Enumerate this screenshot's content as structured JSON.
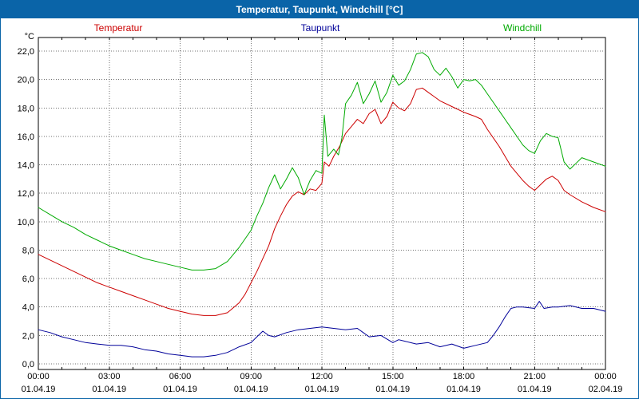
{
  "window": {
    "title": "Temperatur, Taupunkt, Windchill [°C]"
  },
  "colors": {
    "titlebar": "#0a64a8",
    "frame": "#000000",
    "grid": "#707070",
    "background": "#ffffff",
    "temperatur": "#cc0000",
    "taupunkt": "#000099",
    "windchill": "#00aa00"
  },
  "chart_data": {
    "type": "line",
    "title": "Temperatur, Taupunkt, Windchill [°C]",
    "ylabel": "°C",
    "xlabel": "",
    "grid": "dotted",
    "ylim": [
      0,
      22
    ],
    "ytick_step": 2,
    "ytick_labels": [
      "0,0",
      "2,0",
      "4,0",
      "6,0",
      "8,0",
      "10,0",
      "12,0",
      "14,0",
      "16,0",
      "18,0",
      "20,0",
      "22,0"
    ],
    "xlim": [
      0,
      24
    ],
    "x_unit": "hours",
    "xticks": {
      "hours": [
        0,
        3,
        6,
        9,
        12,
        15,
        18,
        21,
        24
      ],
      "times": [
        "00:00",
        "03:00",
        "06:00",
        "09:00",
        "12:00",
        "15:00",
        "18:00",
        "21:00",
        "00:00"
      ],
      "dates": [
        "01.04.19",
        "01.04.19",
        "01.04.19",
        "01.04.19",
        "01.04.19",
        "01.04.19",
        "01.04.19",
        "01.04.19",
        "02.04.19"
      ]
    },
    "series": [
      {
        "name": "Temperatur",
        "color": "#cc0000",
        "points": [
          [
            0,
            7.7
          ],
          [
            0.5,
            7.3
          ],
          [
            1,
            6.9
          ],
          [
            1.5,
            6.5
          ],
          [
            2,
            6.1
          ],
          [
            2.5,
            5.7
          ],
          [
            3,
            5.4
          ],
          [
            3.5,
            5.1
          ],
          [
            4,
            4.8
          ],
          [
            4.5,
            4.5
          ],
          [
            5,
            4.2
          ],
          [
            5.5,
            3.9
          ],
          [
            6,
            3.7
          ],
          [
            6.5,
            3.5
          ],
          [
            7,
            3.4
          ],
          [
            7.5,
            3.4
          ],
          [
            8,
            3.6
          ],
          [
            8.5,
            4.3
          ],
          [
            8.75,
            4.9
          ],
          [
            9,
            5.7
          ],
          [
            9.25,
            6.5
          ],
          [
            9.5,
            7.4
          ],
          [
            9.75,
            8.3
          ],
          [
            10,
            9.5
          ],
          [
            10.25,
            10.4
          ],
          [
            10.5,
            11.2
          ],
          [
            10.75,
            11.8
          ],
          [
            11,
            12.1
          ],
          [
            11.25,
            11.9
          ],
          [
            11.5,
            12.3
          ],
          [
            11.75,
            12.2
          ],
          [
            12,
            12.7
          ],
          [
            12.1,
            14.2
          ],
          [
            12.3,
            13.9
          ],
          [
            12.5,
            14.6
          ],
          [
            12.75,
            15.3
          ],
          [
            13,
            16.2
          ],
          [
            13.25,
            16.7
          ],
          [
            13.5,
            17.2
          ],
          [
            13.75,
            16.9
          ],
          [
            14,
            17.6
          ],
          [
            14.25,
            17.9
          ],
          [
            14.5,
            16.9
          ],
          [
            14.75,
            17.4
          ],
          [
            15,
            18.4
          ],
          [
            15.25,
            18.0
          ],
          [
            15.5,
            17.8
          ],
          [
            15.75,
            18.3
          ],
          [
            16,
            19.3
          ],
          [
            16.25,
            19.4
          ],
          [
            16.5,
            19.1
          ],
          [
            16.75,
            18.8
          ],
          [
            17,
            18.5
          ],
          [
            17.5,
            18.1
          ],
          [
            18,
            17.7
          ],
          [
            18.5,
            17.4
          ],
          [
            18.75,
            17.2
          ],
          [
            19,
            16.5
          ],
          [
            19.25,
            15.9
          ],
          [
            19.5,
            15.3
          ],
          [
            19.75,
            14.6
          ],
          [
            20,
            13.9
          ],
          [
            20.25,
            13.4
          ],
          [
            20.5,
            12.9
          ],
          [
            20.75,
            12.5
          ],
          [
            21,
            12.2
          ],
          [
            21.25,
            12.6
          ],
          [
            21.5,
            13.0
          ],
          [
            21.75,
            13.2
          ],
          [
            22,
            12.9
          ],
          [
            22.25,
            12.2
          ],
          [
            22.5,
            11.9
          ],
          [
            23,
            11.4
          ],
          [
            23.5,
            11.0
          ],
          [
            24,
            10.7
          ]
        ]
      },
      {
        "name": "Taupunkt",
        "color": "#000099",
        "points": [
          [
            0,
            2.4
          ],
          [
            0.5,
            2.2
          ],
          [
            1,
            1.9
          ],
          [
            1.5,
            1.7
          ],
          [
            2,
            1.5
          ],
          [
            2.5,
            1.4
          ],
          [
            3,
            1.3
          ],
          [
            3.5,
            1.3
          ],
          [
            4,
            1.2
          ],
          [
            4.5,
            1.0
          ],
          [
            5,
            0.9
          ],
          [
            5.5,
            0.7
          ],
          [
            6,
            0.6
          ],
          [
            6.5,
            0.5
          ],
          [
            7,
            0.5
          ],
          [
            7.5,
            0.6
          ],
          [
            8,
            0.8
          ],
          [
            8.5,
            1.2
          ],
          [
            9,
            1.5
          ],
          [
            9.25,
            1.9
          ],
          [
            9.5,
            2.3
          ],
          [
            9.75,
            2.0
          ],
          [
            10,
            1.9
          ],
          [
            10.5,
            2.2
          ],
          [
            11,
            2.4
          ],
          [
            11.5,
            2.5
          ],
          [
            12,
            2.6
          ],
          [
            12.5,
            2.5
          ],
          [
            13,
            2.4
          ],
          [
            13.5,
            2.5
          ],
          [
            13.75,
            2.2
          ],
          [
            14,
            1.9
          ],
          [
            14.5,
            2.0
          ],
          [
            15,
            1.5
          ],
          [
            15.25,
            1.7
          ],
          [
            15.5,
            1.6
          ],
          [
            16,
            1.4
          ],
          [
            16.5,
            1.5
          ],
          [
            17,
            1.2
          ],
          [
            17.5,
            1.4
          ],
          [
            18,
            1.1
          ],
          [
            18.25,
            1.2
          ],
          [
            18.5,
            1.3
          ],
          [
            19,
            1.5
          ],
          [
            19.25,
            2.0
          ],
          [
            19.5,
            2.6
          ],
          [
            19.75,
            3.3
          ],
          [
            20,
            3.9
          ],
          [
            20.25,
            4.0
          ],
          [
            20.5,
            4.0
          ],
          [
            21,
            3.9
          ],
          [
            21.2,
            4.4
          ],
          [
            21.4,
            3.9
          ],
          [
            21.75,
            4.0
          ],
          [
            22,
            4.0
          ],
          [
            22.5,
            4.1
          ],
          [
            23,
            3.9
          ],
          [
            23.5,
            3.9
          ],
          [
            24,
            3.7
          ]
        ]
      },
      {
        "name": "Windchill",
        "color": "#00aa00",
        "points": [
          [
            0,
            11.0
          ],
          [
            0.5,
            10.5
          ],
          [
            1,
            10.0
          ],
          [
            1.5,
            9.6
          ],
          [
            2,
            9.1
          ],
          [
            2.5,
            8.7
          ],
          [
            3,
            8.3
          ],
          [
            3.5,
            8.0
          ],
          [
            4,
            7.7
          ],
          [
            4.5,
            7.4
          ],
          [
            5,
            7.2
          ],
          [
            5.5,
            7.0
          ],
          [
            6,
            6.8
          ],
          [
            6.5,
            6.6
          ],
          [
            7,
            6.6
          ],
          [
            7.5,
            6.7
          ],
          [
            8,
            7.2
          ],
          [
            8.5,
            8.2
          ],
          [
            9,
            9.4
          ],
          [
            9.25,
            10.4
          ],
          [
            9.5,
            11.3
          ],
          [
            9.75,
            12.4
          ],
          [
            10,
            13.3
          ],
          [
            10.25,
            12.3
          ],
          [
            10.5,
            13.0
          ],
          [
            10.75,
            13.8
          ],
          [
            11,
            13.1
          ],
          [
            11.25,
            11.9
          ],
          [
            11.5,
            12.9
          ],
          [
            11.75,
            13.6
          ],
          [
            12,
            13.4
          ],
          [
            12.1,
            17.5
          ],
          [
            12.25,
            14.6
          ],
          [
            12.5,
            15.1
          ],
          [
            12.7,
            14.7
          ],
          [
            12.85,
            15.9
          ],
          [
            13,
            18.3
          ],
          [
            13.25,
            18.9
          ],
          [
            13.5,
            19.8
          ],
          [
            13.75,
            18.3
          ],
          [
            14,
            19.0
          ],
          [
            14.25,
            19.9
          ],
          [
            14.5,
            18.4
          ],
          [
            14.75,
            19.1
          ],
          [
            15,
            20.3
          ],
          [
            15.25,
            19.6
          ],
          [
            15.5,
            19.9
          ],
          [
            15.75,
            20.7
          ],
          [
            16,
            21.8
          ],
          [
            16.25,
            21.9
          ],
          [
            16.5,
            21.6
          ],
          [
            16.75,
            20.7
          ],
          [
            17,
            20.3
          ],
          [
            17.25,
            20.8
          ],
          [
            17.5,
            20.2
          ],
          [
            17.75,
            19.4
          ],
          [
            18,
            20.0
          ],
          [
            18.25,
            19.9
          ],
          [
            18.5,
            20.0
          ],
          [
            18.75,
            19.6
          ],
          [
            19,
            19.0
          ],
          [
            19.25,
            18.4
          ],
          [
            19.5,
            17.8
          ],
          [
            19.75,
            17.2
          ],
          [
            20,
            16.6
          ],
          [
            20.25,
            16.0
          ],
          [
            20.5,
            15.4
          ],
          [
            20.75,
            15.0
          ],
          [
            21,
            14.8
          ],
          [
            21.25,
            15.7
          ],
          [
            21.5,
            16.2
          ],
          [
            21.75,
            16.0
          ],
          [
            22,
            15.9
          ],
          [
            22.25,
            14.2
          ],
          [
            22.5,
            13.7
          ],
          [
            22.75,
            14.1
          ],
          [
            23,
            14.5
          ],
          [
            23.5,
            14.2
          ],
          [
            24,
            13.9
          ]
        ]
      }
    ]
  }
}
